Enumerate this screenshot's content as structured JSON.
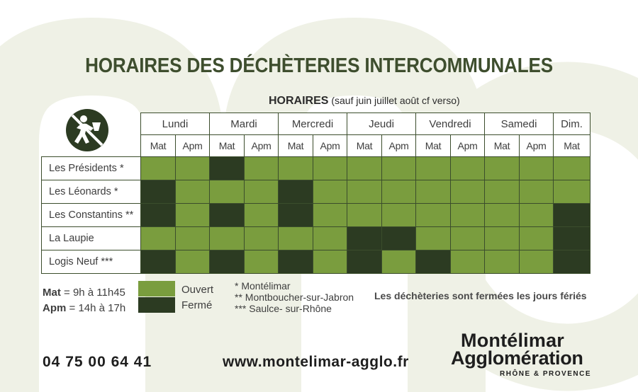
{
  "title": "HORAIRES DES DÉCHÈTERIES INTERCOMMUNALES",
  "subtitle": {
    "bold": "HORAIRES",
    "rest": "(sauf juin juillet août cf verso)"
  },
  "days": [
    "Lundi",
    "Mardi",
    "Mercredi",
    "Jeudi",
    "Vendredi",
    "Samedi",
    "Dim."
  ],
  "slots": [
    "Mat",
    "Apm",
    "Mat",
    "Apm",
    "Mat",
    "Apm",
    "Mat",
    "Apm",
    "Mat",
    "Apm",
    "Mat",
    "Apm",
    "Mat"
  ],
  "sites": [
    {
      "name": "Les Présidents *",
      "status": [
        "open",
        "open",
        "closed",
        "open",
        "open",
        "open",
        "open",
        "open",
        "open",
        "open",
        "open",
        "open",
        "open"
      ]
    },
    {
      "name": "Les Léonards *",
      "status": [
        "closed",
        "open",
        "open",
        "open",
        "closed",
        "open",
        "open",
        "open",
        "open",
        "open",
        "open",
        "open",
        "open"
      ]
    },
    {
      "name": "Les Constantins **",
      "status": [
        "closed",
        "open",
        "closed",
        "open",
        "closed",
        "open",
        "open",
        "open",
        "open",
        "open",
        "open",
        "open",
        "closed"
      ]
    },
    {
      "name": "La Laupie",
      "status": [
        "open",
        "open",
        "open",
        "open",
        "open",
        "open",
        "closed",
        "closed",
        "open",
        "open",
        "open",
        "open",
        "closed"
      ]
    },
    {
      "name": "Logis Neuf ***",
      "status": [
        "closed",
        "open",
        "closed",
        "open",
        "closed",
        "open",
        "closed",
        "open",
        "closed",
        "open",
        "open",
        "open",
        "closed"
      ]
    }
  ],
  "legend": {
    "mat_label": "Mat",
    "mat_hours": "= 9h à 11h45",
    "apm_label": "Apm",
    "apm_hours": "= 14h à 17h",
    "open_label": "Ouvert",
    "closed_label": "Fermé"
  },
  "footnotes": [
    "* Montélimar",
    "** Montboucher-sur-Jabron",
    "*** Saulce- sur-Rhône"
  ],
  "holiday_note": "Les déchèteries sont fermées les jours fériés",
  "phone": "04 75 00 64 41",
  "website": "www.montelimar-agglo.fr",
  "brand": {
    "line1": "Montélimar",
    "line2": "Agglomération",
    "tagline": "RHÔNE & PROVENCE"
  },
  "colors": {
    "open": "#7a9d3e",
    "closed": "#2c3b22",
    "title": "#3e4e2e",
    "background_shape": "#eff1e6"
  },
  "icons": {
    "logo": "recycling-person-icon",
    "background": "mo-letter-shapes"
  }
}
